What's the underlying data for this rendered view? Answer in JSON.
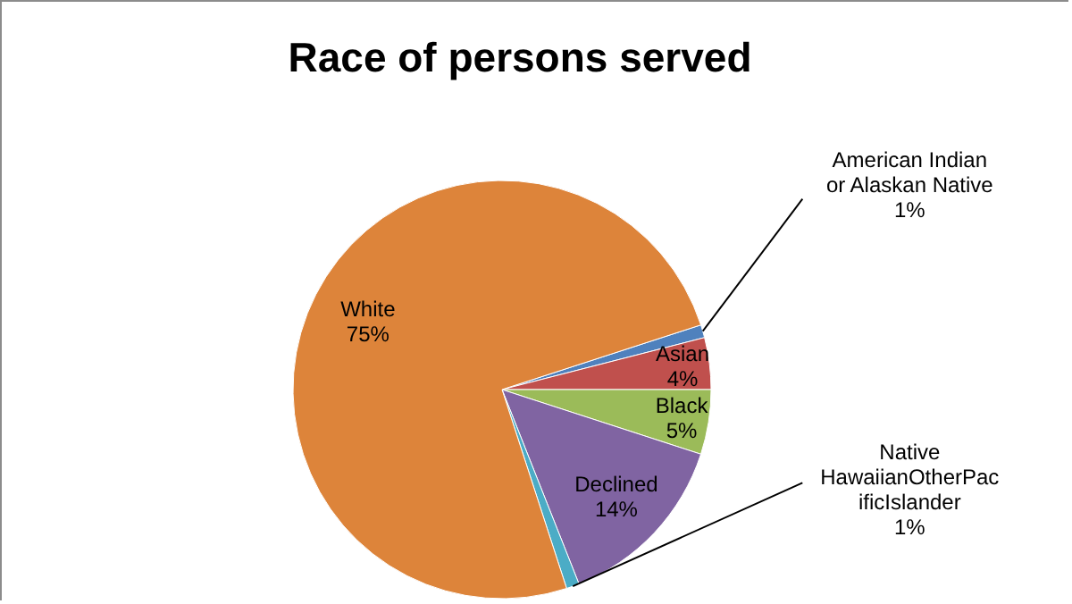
{
  "chart_data": {
    "type": "pie",
    "title": "Race of persons served",
    "categories": [
      "American Indian or Alaskan Native",
      "Asian",
      "Black",
      "Declined",
      "Native HawaiianOtherPacificIslander",
      "White"
    ],
    "values": [
      1,
      4,
      5,
      14,
      1,
      75
    ],
    "colors": [
      "#4f81bd",
      "#c0504d",
      "#9bbb59",
      "#8064a2",
      "#4bacc6",
      "#dd843a"
    ],
    "value_labels": [
      "1%",
      "4%",
      "5%",
      "14%",
      "1%",
      "75%"
    ]
  }
}
